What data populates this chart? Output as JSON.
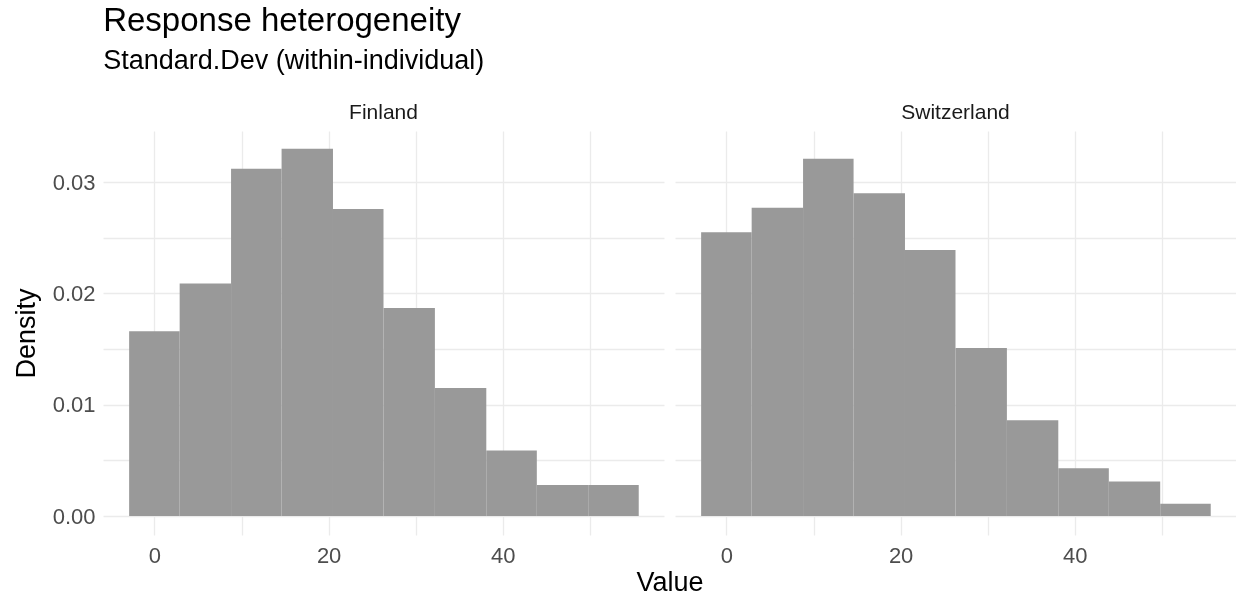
{
  "chart_data": [
    {
      "type": "histogram",
      "title": "Response heterogeneity",
      "subtitle": "Standard.Dev (within-individual)",
      "annotations": [
        "Finland"
      ],
      "xlabel": "Value",
      "ylabel": "Density",
      "color": "#999999",
      "bins": [
        -2.9,
        2.9,
        8.8,
        14.6,
        20.5,
        26.3,
        32.2,
        38.1,
        43.9,
        49.8,
        55.6
      ],
      "values": [
        0.0166,
        0.0209,
        0.0312,
        0.033,
        0.0276,
        0.0187,
        0.0115,
        0.0059,
        0.0028,
        0.0028
      ],
      "xlim": [
        -5.9,
        58.5
      ],
      "xticks": [
        0,
        {
          "value": 10,
          "label": null
        },
        20,
        {
          "value": 30,
          "label": null
        },
        40,
        {
          "value": 50,
          "label": null
        }
      ],
      "ylim": [
        -0.0017,
        0.0346
      ],
      "yticks": [
        {
          "value": 0,
          "label": "0.00"
        },
        {
          "value": 0.005,
          "label": null
        },
        0.01,
        {
          "value": 0.015,
          "label": null
        },
        0.02,
        {
          "value": 0.025,
          "label": null
        },
        0.03
      ],
      "grid": true
    },
    {
      "type": "histogram",
      "annotations": [
        "Switzerland"
      ],
      "color": "#999999",
      "bins": [
        -2.9,
        2.9,
        8.8,
        14.6,
        20.5,
        26.3,
        32.2,
        38.1,
        43.9,
        49.8,
        55.6
      ],
      "values": [
        0.0255,
        0.0277,
        0.0321,
        0.029,
        0.0239,
        0.0151,
        0.0086,
        0.0043,
        0.0031,
        0.0011
      ],
      "xlim": [
        -5.9,
        58.5
      ],
      "xticks": [
        0,
        {
          "value": 10,
          "label": null
        },
        20,
        {
          "value": 30,
          "label": null
        },
        40,
        {
          "value": 50,
          "label": null
        }
      ],
      "ylim": [
        -0.0017,
        0.0346
      ],
      "yticks": [
        0,
        0.005,
        0.01,
        0.015,
        0.02,
        0.025,
        0.03
      ],
      "grid": true,
      "tick_labels": "x"
    }
  ]
}
